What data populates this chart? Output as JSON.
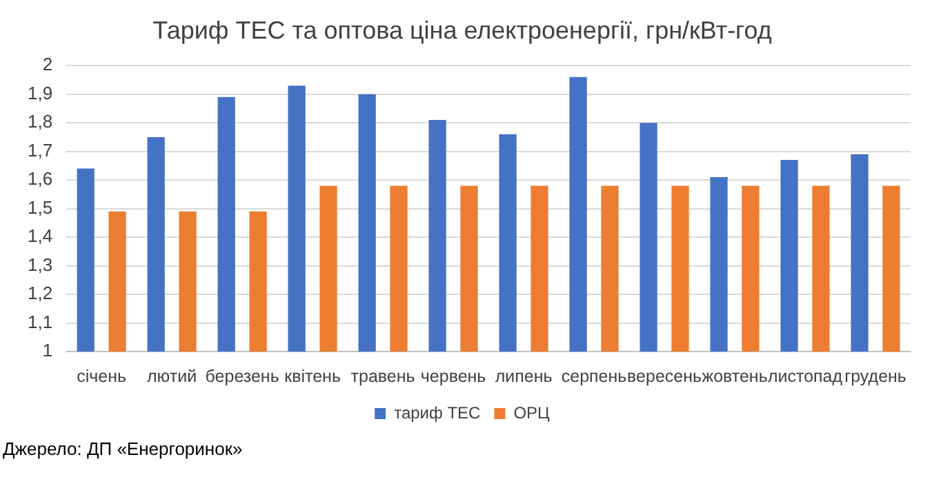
{
  "chart_data": {
    "type": "bar",
    "title": "Тариф ТЕС та оптова ціна електроенергії, грн/кВт-год",
    "categories": [
      "січень",
      "лютий",
      "березень",
      "квітень",
      "травень",
      "червень",
      "липень",
      "серпень",
      "вересень",
      "жовтень",
      "листопад",
      "грудень"
    ],
    "series": [
      {
        "name": "тариф ТЕС",
        "color": "#4472c4",
        "values": [
          1.64,
          1.75,
          1.89,
          1.93,
          1.9,
          1.81,
          1.76,
          1.96,
          1.8,
          1.61,
          1.67,
          1.69
        ]
      },
      {
        "name": "ОРЦ",
        "color": "#ed7d31",
        "values": [
          1.49,
          1.49,
          1.49,
          1.58,
          1.58,
          1.58,
          1.58,
          1.58,
          1.58,
          1.58,
          1.58,
          1.58
        ]
      }
    ],
    "ylim": [
      1,
      2
    ],
    "yticks": [
      1,
      {
        "value": 1.1,
        "label": "1,1"
      },
      {
        "value": 1.2,
        "label": "1,2"
      },
      {
        "value": 1.3,
        "label": "1,3"
      },
      {
        "value": 1.4,
        "label": "1,4"
      },
      {
        "value": 1.5,
        "label": "1,5"
      },
      {
        "value": 1.6,
        "label": "1,6"
      },
      {
        "value": 1.7,
        "label": "1,7"
      },
      {
        "value": 1.8,
        "label": "1,8"
      },
      {
        "value": 1.9,
        "label": "1,9"
      },
      2
    ],
    "grid": "y",
    "legend": "bottom",
    "annotations": [
      "Джерело: ДП «Енергоринок»"
    ]
  }
}
